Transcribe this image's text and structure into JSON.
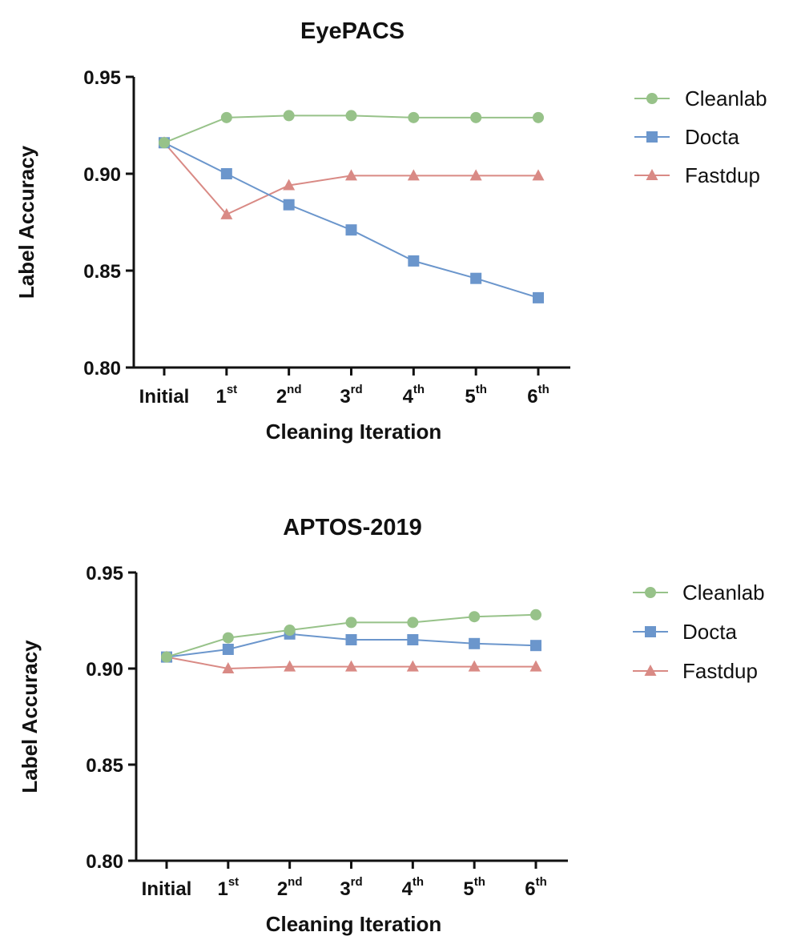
{
  "chart_data": [
    {
      "type": "line",
      "title": "EyePACS",
      "xlabel": "Cleaning Iteration",
      "ylabel": "Label Accuracy",
      "categories": [
        {
          "base": "Initial",
          "sup": ""
        },
        {
          "base": "1",
          "sup": "st"
        },
        {
          "base": "2",
          "sup": "nd"
        },
        {
          "base": "3",
          "sup": "rd"
        },
        {
          "base": "4",
          "sup": "th"
        },
        {
          "base": "5",
          "sup": "th"
        },
        {
          "base": "6",
          "sup": "th"
        }
      ],
      "ylim": [
        0.8,
        0.95
      ],
      "yticks": [
        "0.80",
        "0.85",
        "0.90",
        "0.95"
      ],
      "grid": false,
      "legend_position": "right",
      "series": [
        {
          "name": "Cleanlab",
          "marker": "circle",
          "color": "#97c289",
          "values": [
            0.916,
            0.929,
            0.93,
            0.93,
            0.929,
            0.929,
            0.929
          ]
        },
        {
          "name": "Docta",
          "marker": "square",
          "color": "#6b96cc",
          "values": [
            0.916,
            0.9,
            0.884,
            0.871,
            0.855,
            0.846,
            0.836
          ]
        },
        {
          "name": "Fastdup",
          "marker": "triangle",
          "color": "#d98a85",
          "values": [
            0.916,
            0.879,
            0.894,
            0.899,
            0.899,
            0.899,
            0.899
          ]
        }
      ]
    },
    {
      "type": "line",
      "title": "APTOS-2019",
      "xlabel": "Cleaning Iteration",
      "ylabel": "Label Accuracy",
      "categories": [
        {
          "base": "Initial",
          "sup": ""
        },
        {
          "base": "1",
          "sup": "st"
        },
        {
          "base": "2",
          "sup": "nd"
        },
        {
          "base": "3",
          "sup": "rd"
        },
        {
          "base": "4",
          "sup": "th"
        },
        {
          "base": "5",
          "sup": "th"
        },
        {
          "base": "6",
          "sup": "th"
        }
      ],
      "ylim": [
        0.8,
        0.95
      ],
      "yticks": [
        "0.80",
        "0.85",
        "0.90",
        "0.95"
      ],
      "grid": false,
      "legend_position": "right",
      "series": [
        {
          "name": "Cleanlab",
          "marker": "circle",
          "color": "#97c289",
          "values": [
            0.906,
            0.916,
            0.92,
            0.924,
            0.924,
            0.927,
            0.928
          ]
        },
        {
          "name": "Docta",
          "marker": "square",
          "color": "#6b96cc",
          "values": [
            0.906,
            0.91,
            0.918,
            0.915,
            0.915,
            0.913,
            0.912
          ]
        },
        {
          "name": "Fastdup",
          "marker": "triangle",
          "color": "#d98a85",
          "values": [
            0.906,
            0.9,
            0.901,
            0.901,
            0.901,
            0.901,
            0.901
          ]
        }
      ]
    }
  ]
}
